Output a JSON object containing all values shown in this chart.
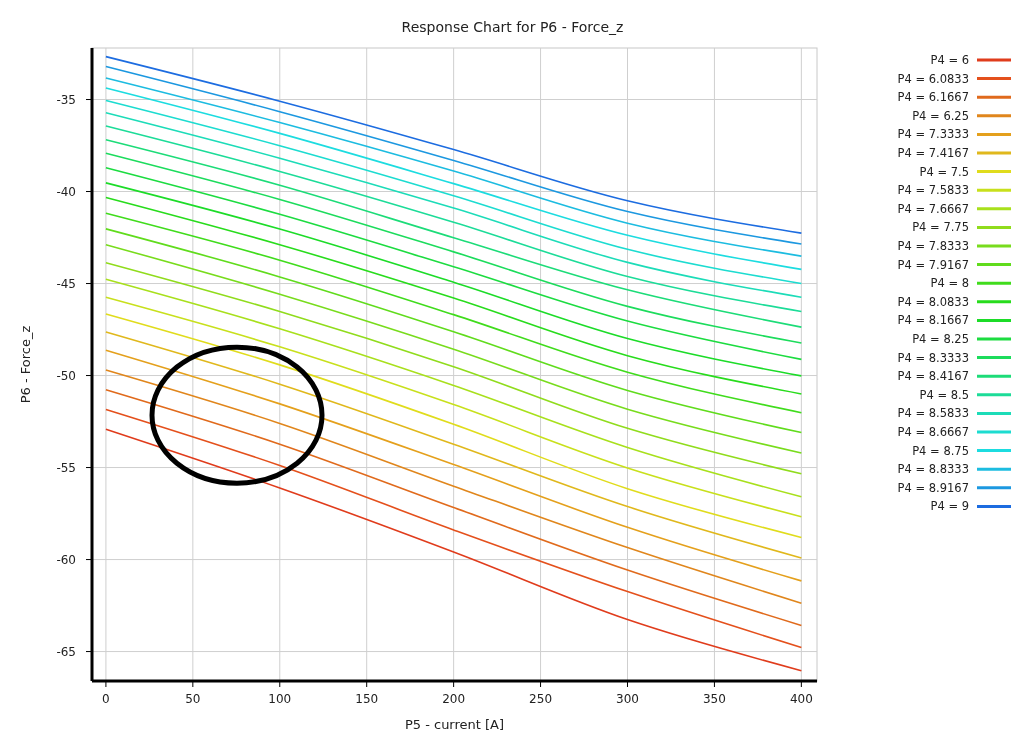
{
  "chart_data": {
    "type": "line",
    "title": "Response Chart for P6 - Force_z",
    "xlabel": "P5 - current [A]",
    "ylabel": "P6 - Force_z",
    "x": [
      0,
      100,
      200,
      300,
      400
    ],
    "xlim": [
      -8,
      409
    ],
    "ylim": [
      -66.6,
      -32.2
    ],
    "xticks": [
      0,
      50,
      100,
      150,
      200,
      250,
      300,
      350,
      400
    ],
    "yticks": [
      -65,
      -60,
      -55,
      -50,
      -45,
      -40,
      -35
    ],
    "grid": true,
    "legend": "right",
    "marker": "none",
    "line_style": "solid",
    "series": [
      {
        "name": "P4 = 6",
        "color": "#e03c1c",
        "values": [
          -52.92,
          -56.11,
          -59.59,
          -63.26,
          -66.04
        ]
      },
      {
        "name": "P4 = 6.0833",
        "color": "#e4501c",
        "values": [
          -51.84,
          -54.89,
          -58.39,
          -61.74,
          -64.78
        ]
      },
      {
        "name": "P4 = 6.1667",
        "color": "#e06a1c",
        "values": [
          -50.77,
          -53.73,
          -57.17,
          -60.57,
          -63.58
        ]
      },
      {
        "name": "P4 = 6.25",
        "color": "#e0861c",
        "values": [
          -49.7,
          -52.6,
          -56.01,
          -59.35,
          -62.37
        ]
      },
      {
        "name": "P4 = 7.3333",
        "color": "#e4a01c",
        "values": [
          -48.62,
          -51.54,
          -54.84,
          -58.25,
          -61.16
        ]
      },
      {
        "name": "P4 = 7.4167",
        "color": "#e0b81c",
        "values": [
          -47.63,
          -50.47,
          -53.73,
          -57.12,
          -59.91
        ]
      },
      {
        "name": "P4 = 7.5",
        "color": "#e0dc1c",
        "values": [
          -46.65,
          -49.42,
          -52.65,
          -56.15,
          -58.8
        ]
      },
      {
        "name": "P4 = 7.5833",
        "color": "#c8e01c",
        "values": [
          -45.75,
          -48.44,
          -51.58,
          -55.02,
          -57.67
        ]
      },
      {
        "name": "P4 = 7.6667",
        "color": "#a8e01c",
        "values": [
          -44.77,
          -47.46,
          -50.54,
          -53.91,
          -56.59
        ]
      },
      {
        "name": "P4 = 7.75",
        "color": "#90dc1c",
        "values": [
          -43.87,
          -46.52,
          -49.52,
          -52.87,
          -55.34
        ]
      },
      {
        "name": "P4 = 7.8333",
        "color": "#78dc1c",
        "values": [
          -42.89,
          -45.58,
          -48.57,
          -51.83,
          -54.21
        ]
      },
      {
        "name": "P4 = 7.9167",
        "color": "#60dc1c",
        "values": [
          -42.03,
          -44.64,
          -47.62,
          -50.81,
          -53.1
        ]
      },
      {
        "name": "P4 = 8",
        "color": "#40dc1c",
        "values": [
          -41.18,
          -43.73,
          -46.69,
          -49.82,
          -52.02
        ]
      },
      {
        "name": "P4 = 8.0833",
        "color": "#28dc1c",
        "values": [
          -40.32,
          -42.89,
          -45.79,
          -48.92,
          -51.0
        ]
      },
      {
        "name": "P4 = 8.1667",
        "color": "#1cdc28",
        "values": [
          -39.53,
          -42.04,
          -44.93,
          -47.99,
          -50.02
        ]
      },
      {
        "name": "P4 = 8.25",
        "color": "#1cdc40",
        "values": [
          -38.71,
          -41.24,
          -44.09,
          -47.04,
          -49.12
        ]
      },
      {
        "name": "P4 = 8.3333",
        "color": "#1cdc5c",
        "values": [
          -37.92,
          -40.43,
          -43.28,
          -46.24,
          -48.23
        ]
      },
      {
        "name": "P4 = 8.4167",
        "color": "#1cdc78",
        "values": [
          -37.19,
          -39.66,
          -42.51,
          -45.34,
          -47.37
        ]
      },
      {
        "name": "P4 = 8.5",
        "color": "#1cdc98",
        "values": [
          -36.44,
          -38.91,
          -41.67,
          -44.62,
          -46.52
        ]
      },
      {
        "name": "P4 = 8.5833",
        "color": "#1cdcb8",
        "values": [
          -35.72,
          -38.19,
          -40.9,
          -43.85,
          -45.75
        ]
      },
      {
        "name": "P4 = 8.6667",
        "color": "#1cdcd0",
        "values": [
          -35.05,
          -37.51,
          -40.23,
          -43.14,
          -45.0
        ]
      },
      {
        "name": "P4 = 8.75",
        "color": "#1cdce0",
        "values": [
          -34.37,
          -36.84,
          -39.57,
          -42.38,
          -44.23
        ]
      },
      {
        "name": "P4 = 8.8333",
        "color": "#1cbce0",
        "values": [
          -33.83,
          -36.25,
          -38.89,
          -41.72,
          -43.51
        ]
      },
      {
        "name": "P4 = 8.9167",
        "color": "#1c98e0",
        "values": [
          -33.21,
          -35.66,
          -38.31,
          -41.09,
          -42.85
        ]
      },
      {
        "name": "P4 = 9",
        "color": "#1c6ce0",
        "values": [
          -32.67,
          -35.09,
          -37.72,
          -40.5,
          -42.26
        ]
      }
    ]
  }
}
